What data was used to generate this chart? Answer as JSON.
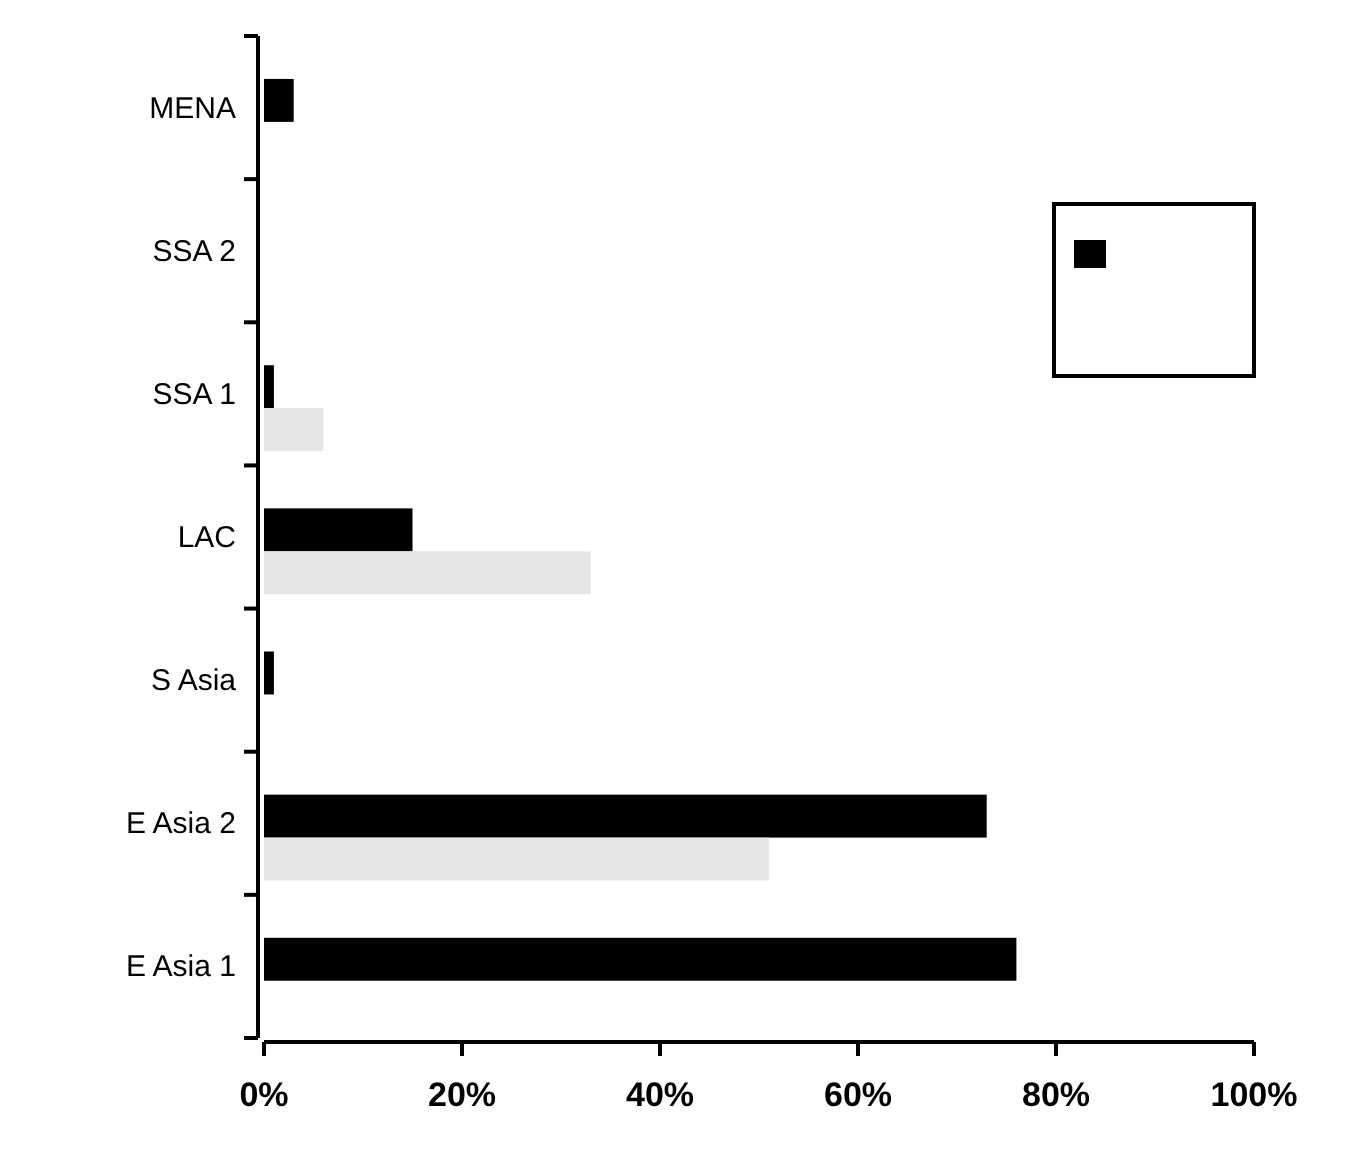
{
  "chart_data": {
    "type": "bar",
    "orientation": "horizontal",
    "categories": [
      "MENA",
      "SSA 2",
      "SSA 1",
      "LAC",
      "S Asia",
      "E Asia 2",
      "E Asia 1"
    ],
    "series": [
      {
        "color": "#000000",
        "values": [
          3,
          0,
          1,
          15,
          1,
          73,
          76
        ]
      },
      {
        "color": "#e6e6e6",
        "values": [
          null,
          null,
          6,
          33,
          null,
          51,
          null
        ]
      }
    ],
    "xlim": [
      0,
      100
    ],
    "xticks": [
      {
        "value": 0,
        "label": "0%"
      },
      {
        "value": 20,
        "label": "20%"
      },
      {
        "value": 40,
        "label": "40%"
      },
      {
        "value": 60,
        "label": "60%"
      },
      {
        "value": 80,
        "label": "80%"
      },
      {
        "value": 100,
        "label": "100%"
      }
    ],
    "grid": false
  }
}
